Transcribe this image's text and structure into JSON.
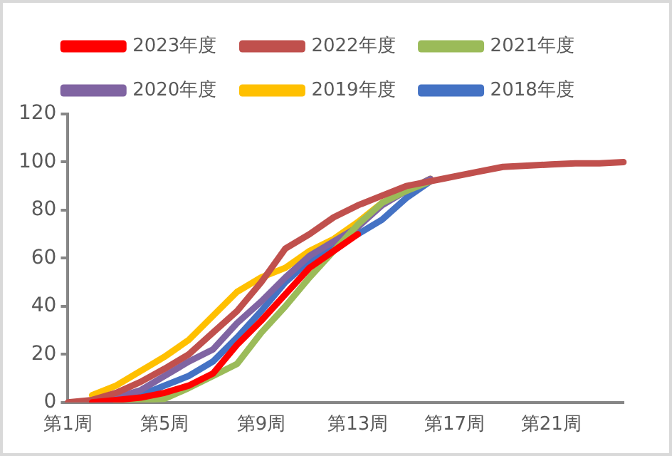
{
  "chart_data": {
    "type": "line",
    "categories": [
      "第1周",
      null,
      null,
      null,
      "第5周",
      null,
      null,
      null,
      "第9周",
      null,
      null,
      null,
      "第13周",
      null,
      null,
      null,
      "第17周",
      null,
      null,
      null,
      "第21周",
      null,
      null,
      null
    ],
    "series": [
      {
        "name": "2023年度",
        "color": "#ff0000",
        "values": [
          null,
          0,
          1,
          2,
          4,
          7,
          12,
          24,
          34,
          45,
          56,
          63,
          70,
          null,
          null,
          null,
          null,
          null,
          null,
          null,
          null,
          null,
          null,
          null
        ]
      },
      {
        "name": "2022年度",
        "color": "#c0504d",
        "values": [
          0,
          1,
          4,
          8.5,
          14,
          20,
          29,
          38,
          50,
          64,
          70,
          77,
          82,
          86,
          90,
          92,
          94,
          96,
          98,
          98.5,
          99,
          99.5,
          99.5,
          100
        ]
      },
      {
        "name": "2021年度",
        "color": "#9bbb59",
        "values": [
          null,
          null,
          0,
          1,
          1.5,
          6,
          11,
          16,
          29,
          40,
          52,
          63,
          74,
          83,
          88,
          92,
          null,
          null,
          null,
          null,
          null,
          null,
          null,
          null
        ]
      },
      {
        "name": "2020年度",
        "color": "#8064a2",
        "values": [
          null,
          1,
          2,
          5,
          11,
          17,
          22,
          33,
          42,
          52,
          61,
          67,
          73,
          82,
          88,
          93,
          null,
          null,
          null,
          null,
          null,
          null,
          null,
          null
        ]
      },
      {
        "name": "2019年度",
        "color": "#ffc000",
        "values": [
          null,
          3,
          7,
          13,
          19,
          26,
          36,
          46,
          52,
          56,
          63,
          68,
          75,
          83,
          88,
          93,
          null,
          null,
          null,
          null,
          null,
          null,
          null,
          null
        ]
      },
      {
        "name": "2018年度",
        "color": "#4472c4",
        "values": [
          null,
          0.5,
          1.5,
          3,
          7,
          11,
          17,
          27,
          38,
          50,
          59,
          64,
          70,
          76,
          85,
          92,
          null,
          null,
          null,
          null,
          null,
          null,
          null,
          null
        ]
      }
    ],
    "ylim": [
      0,
      120
    ],
    "yticks": [
      0,
      20,
      40,
      60,
      80,
      100,
      120
    ],
    "grid": false,
    "legend": "top",
    "marker": "none",
    "line_style": "solid"
  }
}
